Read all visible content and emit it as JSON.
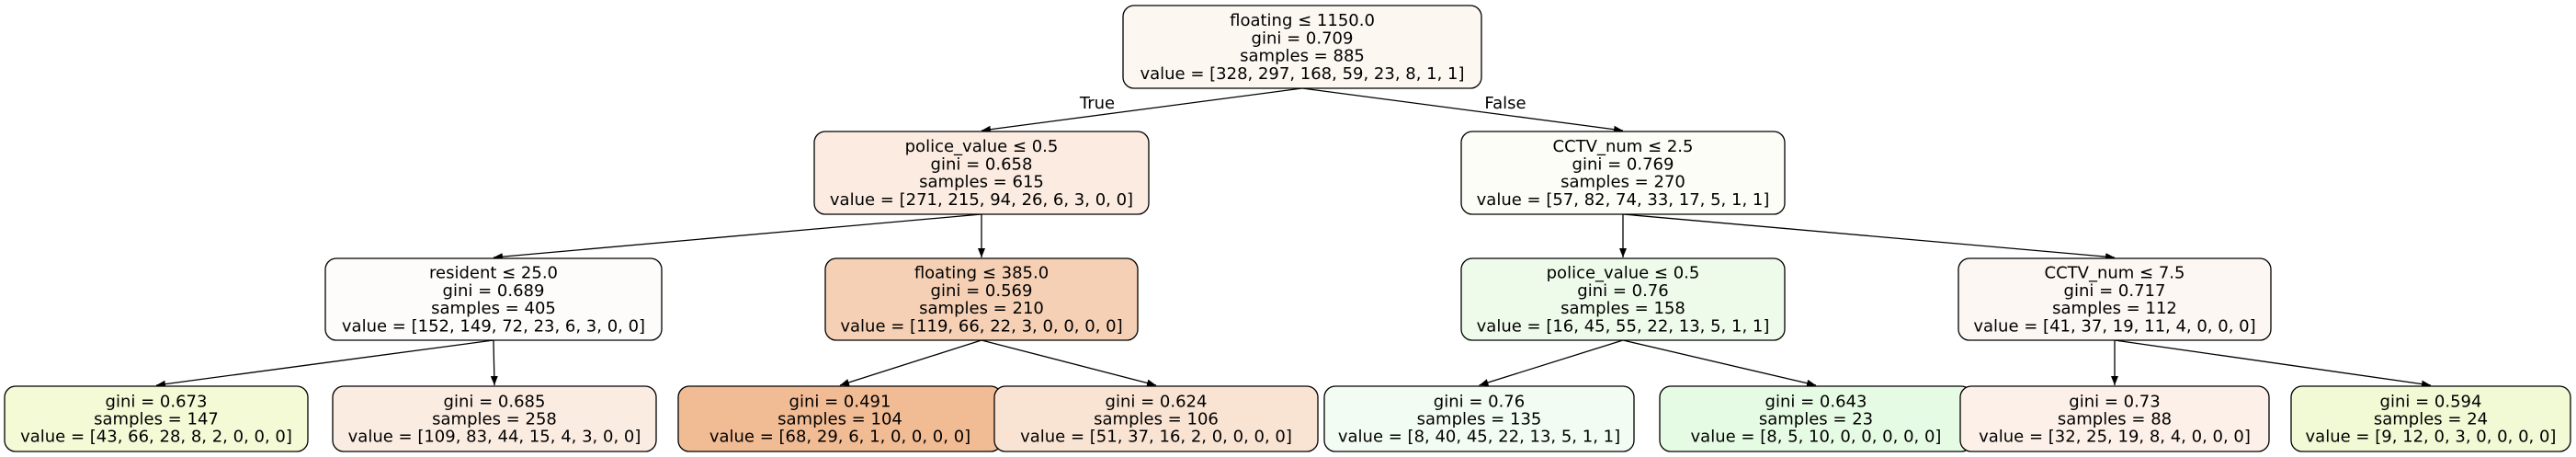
{
  "tree": {
    "nodes": [
      {
        "id": "n0",
        "color": "#fdf7f2",
        "lines": [
          "floating ≤ 1150.0",
          "gini = 0.709",
          "samples = 885",
          "value = [328, 297, 168, 59, 23, 8, 1, 1]"
        ]
      },
      {
        "id": "n1",
        "color": "#fbebe0",
        "lines": [
          "police_value ≤ 0.5",
          "gini = 0.658",
          "samples = 615",
          "value = [271, 215, 94, 26, 6, 3, 0, 0]"
        ]
      },
      {
        "id": "n2",
        "color": "#fcfdf6",
        "lines": [
          "CCTV_num ≤ 2.5",
          "gini = 0.769",
          "samples = 270",
          "value = [57, 82, 74, 33, 17, 5, 1, 1]"
        ]
      },
      {
        "id": "n3",
        "color": "#fefcfb",
        "lines": [
          "resident ≤ 25.0",
          "gini = 0.689",
          "samples = 405",
          "value = [152, 149, 72, 23, 6, 3, 0, 0]"
        ]
      },
      {
        "id": "n4",
        "color": "#f5d0b5",
        "lines": [
          "floating ≤ 385.0",
          "gini = 0.569",
          "samples = 210",
          "value = [119, 66, 22, 3, 0, 0, 0, 0]"
        ]
      },
      {
        "id": "n5",
        "color": "#eefbea",
        "lines": [
          "police_value ≤ 0.5",
          "gini = 0.76",
          "samples = 158",
          "value = [16, 45, 55, 22, 13, 5, 1, 1]"
        ]
      },
      {
        "id": "n6",
        "color": "#fcf7f3",
        "lines": [
          "CCTV_num ≤ 7.5",
          "gini = 0.717",
          "samples = 112",
          "value = [41, 37, 19, 11, 4, 0, 0, 0]"
        ]
      },
      {
        "id": "n7",
        "color": "#f4fad6",
        "lines": [
          "gini = 0.673",
          "samples = 147",
          "value = [43, 66, 28, 8, 2, 0, 0, 0]"
        ]
      },
      {
        "id": "n8",
        "color": "#fbece2",
        "lines": [
          "gini = 0.685",
          "samples = 258",
          "value = [109, 83, 44, 15, 4, 3, 0, 0]"
        ]
      },
      {
        "id": "n9",
        "color": "#f1bb94",
        "lines": [
          "gini = 0.491",
          "samples = 104",
          "value = [68, 29, 6, 1, 0, 0, 0, 0]"
        ]
      },
      {
        "id": "n10",
        "color": "#f9e3d3",
        "lines": [
          "gini = 0.624",
          "samples = 106",
          "value = [51, 37, 16, 2, 0, 0, 0, 0]"
        ]
      },
      {
        "id": "n11",
        "color": "#f3fcf2",
        "lines": [
          "gini = 0.76",
          "samples = 135",
          "value = [8, 40, 45, 22, 13, 5, 1, 1]"
        ]
      },
      {
        "id": "n12",
        "color": "#e6fbe3",
        "lines": [
          "gini = 0.643",
          "samples = 23",
          "value = [8, 5, 10, 0, 0, 0, 0, 0]"
        ]
      },
      {
        "id": "n13",
        "color": "#fcf0e8",
        "lines": [
          "gini = 0.73",
          "samples = 88",
          "value = [32, 25, 19, 8, 4, 0, 0, 0]"
        ]
      },
      {
        "id": "n14",
        "color": "#f2f9d5",
        "lines": [
          "gini = 0.594",
          "samples = 24",
          "value = [9, 12, 0, 3, 0, 0, 0, 0]"
        ]
      }
    ],
    "edges": [
      {
        "from": "n0",
        "to": "n1",
        "label": "True"
      },
      {
        "from": "n0",
        "to": "n2",
        "label": "False"
      },
      {
        "from": "n1",
        "to": "n3",
        "label": ""
      },
      {
        "from": "n1",
        "to": "n4",
        "label": ""
      },
      {
        "from": "n2",
        "to": "n5",
        "label": ""
      },
      {
        "from": "n2",
        "to": "n6",
        "label": ""
      },
      {
        "from": "n3",
        "to": "n7",
        "label": ""
      },
      {
        "from": "n3",
        "to": "n8",
        "label": ""
      },
      {
        "from": "n4",
        "to": "n9",
        "label": ""
      },
      {
        "from": "n4",
        "to": "n10",
        "label": ""
      },
      {
        "from": "n5",
        "to": "n11",
        "label": ""
      },
      {
        "from": "n5",
        "to": "n12",
        "label": ""
      },
      {
        "from": "n6",
        "to": "n13",
        "label": ""
      },
      {
        "from": "n6",
        "to": "n14",
        "label": ""
      }
    ]
  }
}
